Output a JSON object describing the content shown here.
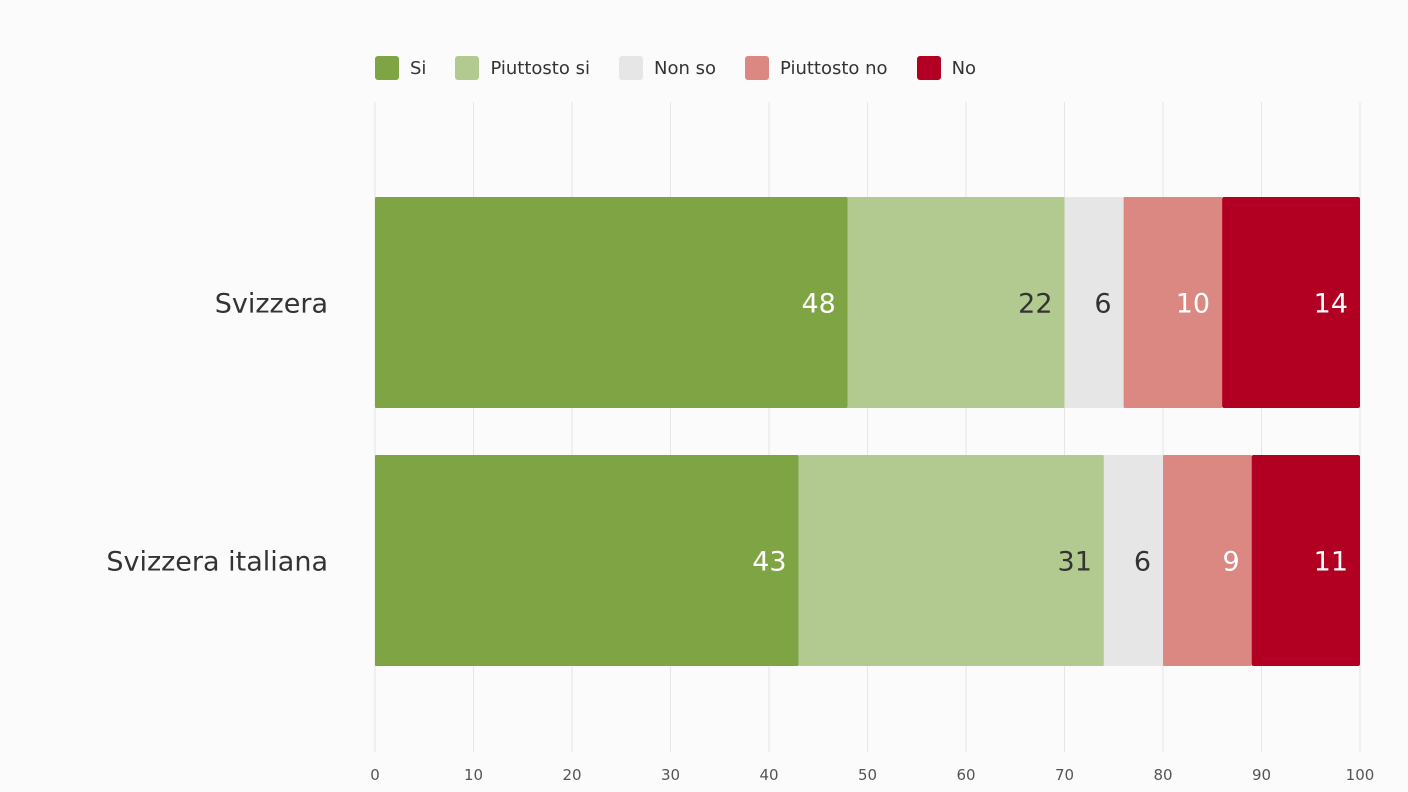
{
  "chart_data": {
    "type": "bar",
    "orientation": "horizontal",
    "stacked": true,
    "categories": [
      "Svizzera",
      "Svizzera italiana"
    ],
    "series": [
      {
        "name": "Si",
        "color": "#7fa443",
        "label_color": "#ffffff",
        "values": [
          48,
          43
        ]
      },
      {
        "name": "Piuttosto si",
        "color": "#b2ca8f",
        "label_color": "#333333",
        "values": [
          22,
          31
        ]
      },
      {
        "name": "Non so",
        "color": "#e6e6e6",
        "label_color": "#333333",
        "values": [
          6,
          6
        ]
      },
      {
        "name": "Piuttosto no",
        "color": "#db8782",
        "label_color": "#ffffff",
        "values": [
          10,
          9
        ]
      },
      {
        "name": "No",
        "color": "#b10021",
        "label_color": "#ffffff",
        "values": [
          14,
          11
        ]
      }
    ],
    "xlim": [
      0,
      100
    ],
    "x_ticks": [
      "0",
      "10",
      "20",
      "30",
      "40",
      "50",
      "60",
      "70",
      "80",
      "90",
      "100"
    ],
    "grid": "vertical",
    "legend_position": "top-left",
    "title": "",
    "xlabel": "",
    "ylabel": ""
  },
  "colors": {
    "background": "#fbfbfb",
    "grid": "#e6e6e6",
    "text": "#333333",
    "tick_text": "#555555"
  }
}
